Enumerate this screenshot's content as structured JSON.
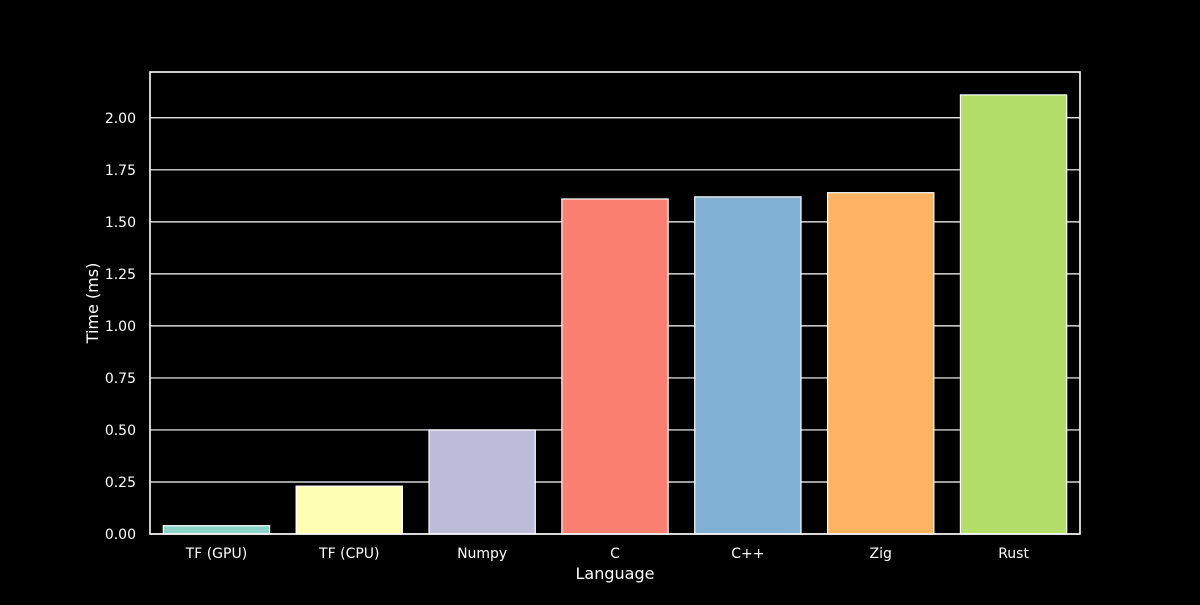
{
  "chart_data": {
    "type": "bar",
    "title": "",
    "xlabel": "Language",
    "ylabel": "Time (ms)",
    "categories": [
      "TF (GPU)",
      "TF (CPU)",
      "Numpy",
      "C",
      "C++",
      "Zig",
      "Rust"
    ],
    "values": [
      0.04,
      0.23,
      0.5,
      1.61,
      1.62,
      1.64,
      2.11
    ],
    "ylim": [
      0,
      2.22
    ],
    "yticks": [
      0.0,
      0.25,
      0.5,
      0.75,
      1.0,
      1.25,
      1.5,
      1.75,
      2.0
    ],
    "ytick_labels": [
      "0.00",
      "0.25",
      "0.50",
      "0.75",
      "1.00",
      "1.25",
      "1.50",
      "1.75",
      "2.00"
    ],
    "grid": true,
    "colors": [
      "#8dd3c7",
      "#ffffb3",
      "#bebada",
      "#fb8072",
      "#80b1d3",
      "#fdb462",
      "#b3de69"
    ],
    "background": "#000000",
    "foreground": "#ffffff"
  }
}
